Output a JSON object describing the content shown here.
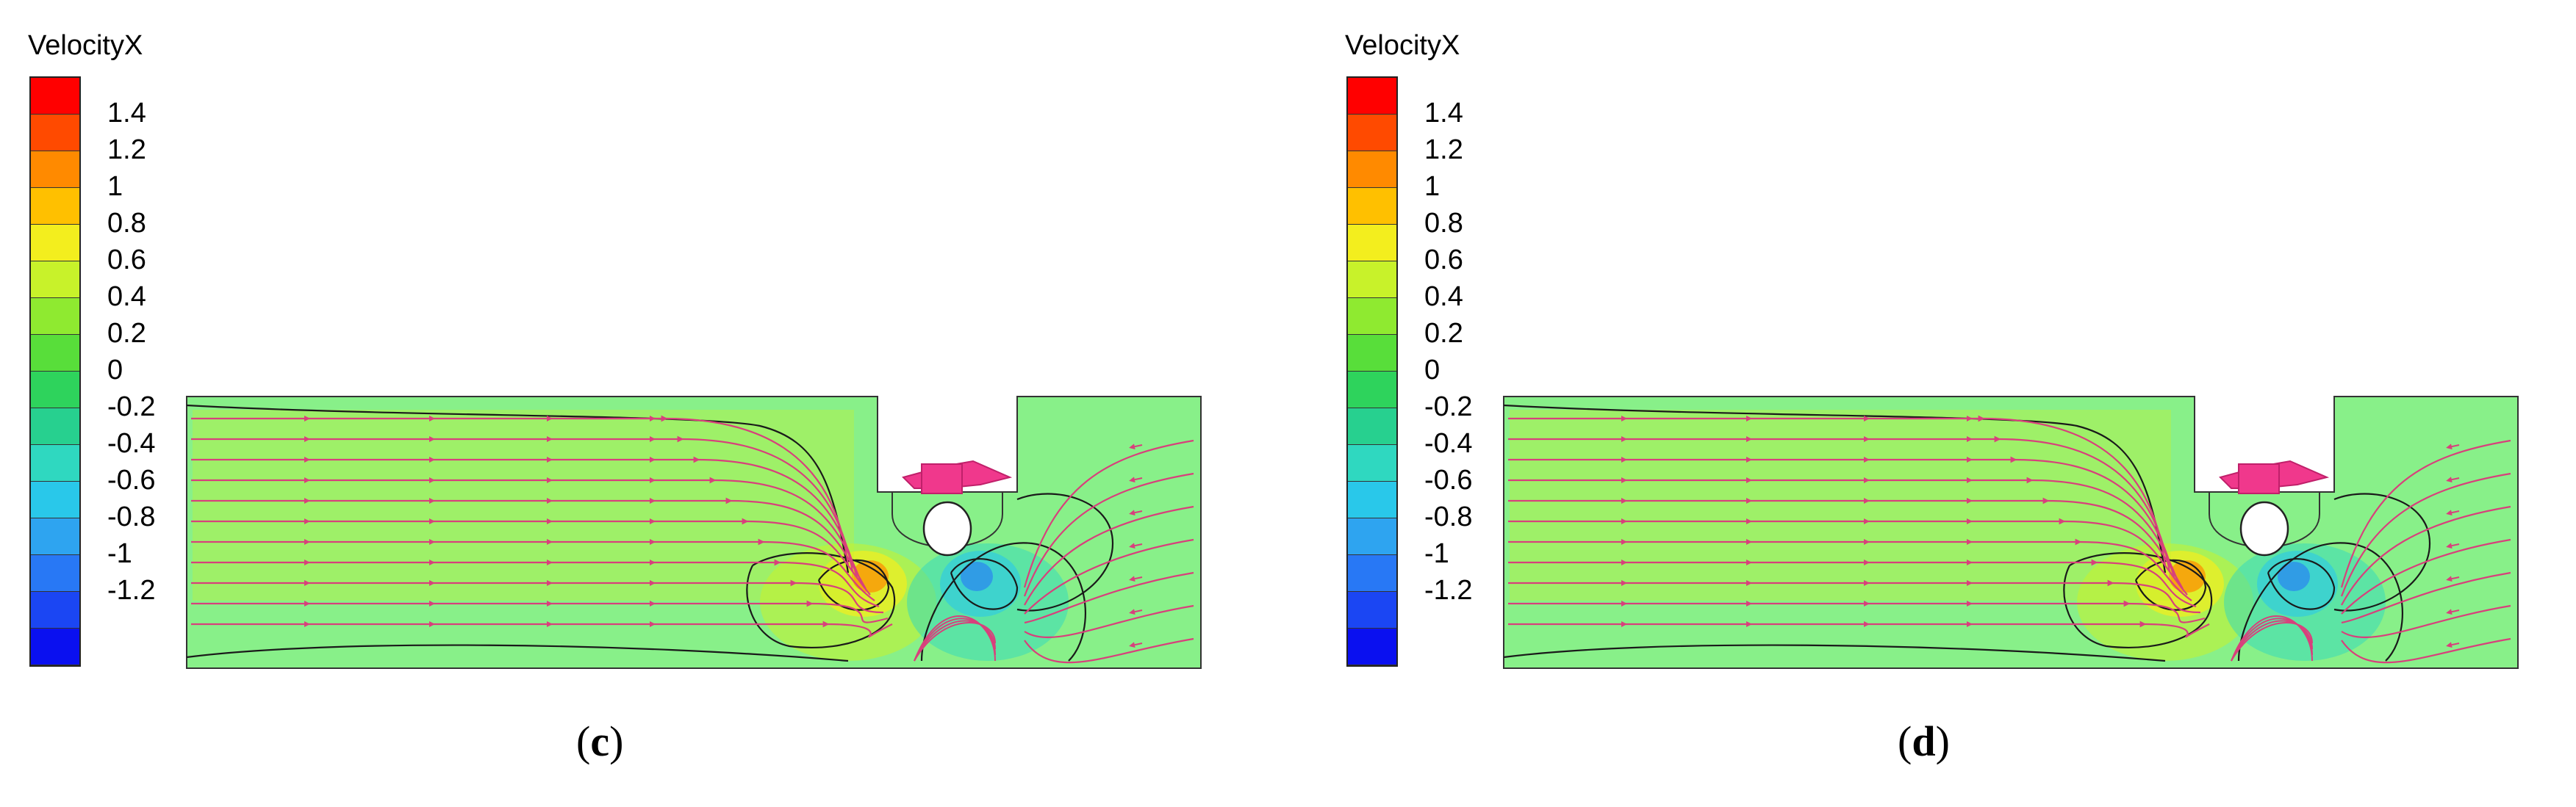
{
  "figure": {
    "panels": [
      {
        "id": "c",
        "colorbar_title": "VelocityX",
        "label_open": "(",
        "label_letter": "c",
        "label_close": ")"
      },
      {
        "id": "d",
        "colorbar_title": "VelocityX",
        "label_open": "(",
        "label_letter": "d",
        "label_close": ")"
      }
    ],
    "colorbar": {
      "ticks": [
        "1.4",
        "1.2",
        "1",
        "0.8",
        "0.6",
        "0.4",
        "0.2",
        "0",
        "-0.2",
        "-0.4",
        "-0.6",
        "-0.8",
        "-1",
        "-1.2"
      ],
      "band_colors": [
        "#ff0000",
        "#ff4a00",
        "#ff8a00",
        "#ffc000",
        "#f3ee1e",
        "#c8f22a",
        "#8fea30",
        "#58de3a",
        "#2ed35c",
        "#27d08f",
        "#2fd8c0",
        "#29c8ea",
        "#2ea4f0",
        "#2878f5",
        "#1b46f3",
        "#0a10f0"
      ],
      "field_color": "#88f089",
      "streamline_color": "#d8407c",
      "contour_color": "#1a1a1a",
      "body_color": "#f0388c"
    }
  }
}
